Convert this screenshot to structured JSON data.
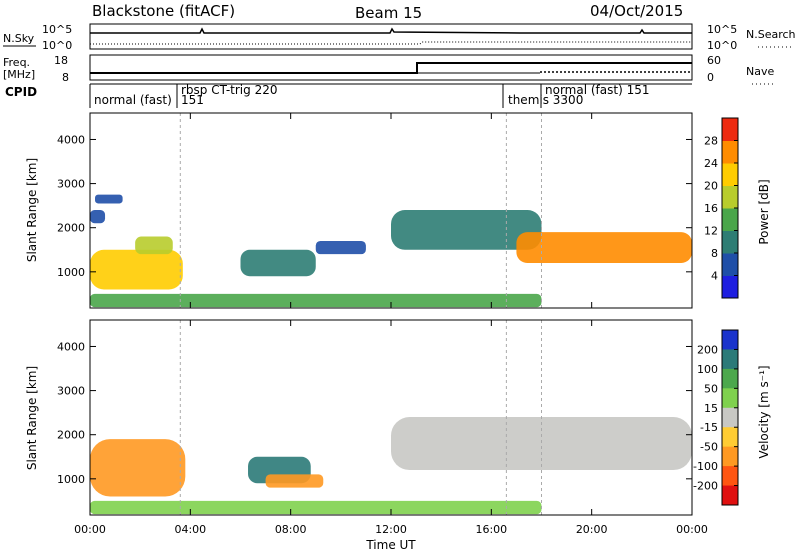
{
  "header": {
    "title": "Blackstone (fitACF)",
    "beam": "Beam 15",
    "date": "04/Oct/2015"
  },
  "top_panels": {
    "nsky_label": "N.Sky",
    "nsearch_label": "N.Search",
    "noise_ticks": [
      "10^5",
      "10^0"
    ],
    "freq_label": "Freq.",
    "freq_unit": "[MHz]",
    "freq_ticks": [
      "18",
      "8"
    ],
    "nave_label": "Nave",
    "nave_ticks": [
      "60",
      "0"
    ],
    "cpid_label": "CPID",
    "cpid_modes": [
      "normal (fast)",
      "rbsp CT-trig 220",
      "151",
      "themis 3300",
      "normal (fast) 151"
    ]
  },
  "chart_data": [
    {
      "type": "heatmap",
      "title": "",
      "xlabel": "Time UT",
      "ylabel": "Slant Range [km]",
      "x_ticks": [
        "00:00",
        "04:00",
        "08:00",
        "12:00",
        "16:00",
        "20:00",
        "00:00"
      ],
      "xlim_hours": [
        0,
        24
      ],
      "ylim": [
        180,
        4600
      ],
      "y_ticks": [
        1000,
        2000,
        3000,
        4000
      ],
      "colorbar": {
        "label": "Power [dB]",
        "ticks": [
          4,
          8,
          12,
          16,
          20,
          24,
          28
        ],
        "range": [
          0,
          32
        ],
        "colors": [
          "#1f1fe0",
          "#1f4fa8",
          "#2e7d74",
          "#4aa64a",
          "#b8cc2c",
          "#ffcc00",
          "#ff8c00",
          "#ee2a10"
        ]
      },
      "echo_regions": [
        {
          "t0": 0.0,
          "t1": 0.6,
          "r0": 2100,
          "r1": 2400,
          "value": 6
        },
        {
          "t0": 0.2,
          "t1": 1.3,
          "r0": 2550,
          "r1": 2750,
          "value": 4
        },
        {
          "t0": 0.0,
          "t1": 3.7,
          "r0": 600,
          "r1": 1500,
          "value": 20
        },
        {
          "t0": 1.8,
          "t1": 3.3,
          "r0": 1400,
          "r1": 1800,
          "value": 18
        },
        {
          "t0": 6.0,
          "t1": 9.0,
          "r0": 900,
          "r1": 1500,
          "value": 10
        },
        {
          "t0": 9.0,
          "t1": 11.0,
          "r0": 1400,
          "r1": 1700,
          "value": 6
        },
        {
          "t0": 12.0,
          "t1": 18.0,
          "r0": 1500,
          "r1": 2400,
          "value": 10
        },
        {
          "t0": 17.0,
          "t1": 24.0,
          "r0": 1200,
          "r1": 1900,
          "value": 24
        },
        {
          "t0": 0.0,
          "t1": 18.0,
          "r0": 200,
          "r1": 500,
          "value": 14
        }
      ]
    },
    {
      "type": "heatmap",
      "title": "",
      "xlabel": "Time UT",
      "ylabel": "Slant Range [km]",
      "x_ticks": [
        "00:00",
        "04:00",
        "08:00",
        "12:00",
        "16:00",
        "20:00",
        "00:00"
      ],
      "xlim_hours": [
        0,
        24
      ],
      "ylim": [
        180,
        4600
      ],
      "y_ticks": [
        1000,
        2000,
        3000,
        4000
      ],
      "colorbar": {
        "label": "Velocity [m s⁻¹]",
        "ticks": [
          200,
          100,
          50,
          15,
          -15,
          -50,
          -100,
          -200
        ],
        "colors": [
          "#1a33cc",
          "#2b7a78",
          "#4ca84c",
          "#7fd14e",
          "#c8c8c4",
          "#ffcc33",
          "#ff9922",
          "#ff5511",
          "#e01010"
        ]
      },
      "echo_regions": [
        {
          "t0": 0.0,
          "t1": 3.8,
          "r0": 600,
          "r1": 1900,
          "value": -60
        },
        {
          "t0": 6.3,
          "t1": 8.8,
          "r0": 900,
          "r1": 1500,
          "value": 120
        },
        {
          "t0": 7.0,
          "t1": 9.3,
          "r0": 800,
          "r1": 1100,
          "value": -80
        },
        {
          "t0": 12.0,
          "t1": 24.0,
          "r0": 1200,
          "r1": 2400,
          "value": 0
        },
        {
          "t0": 0.0,
          "t1": 18.0,
          "r0": 200,
          "r1": 500,
          "value": 30
        }
      ]
    }
  ]
}
